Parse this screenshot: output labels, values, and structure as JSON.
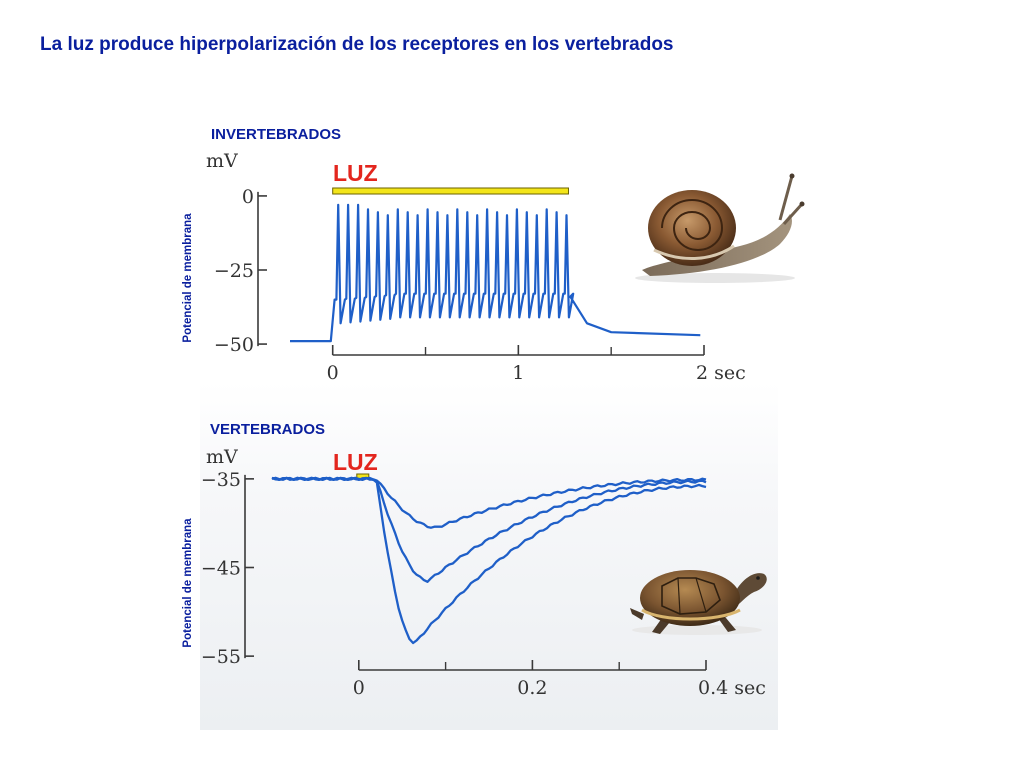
{
  "title": "La luz produce hiperpolarización de los receptores en los vertebrados",
  "colors": {
    "title": "#0a1f9e",
    "trace": "#1f5fc8",
    "light": "#e3261e",
    "bar_fill": "#f3e51a",
    "bar_edge": "#6b6200"
  },
  "chart_data": [
    {
      "type": "line",
      "section_label": "INVERTEBRADOS",
      "ylabel": "Potencial de membrana",
      "yunit": "mV",
      "xunit": "sec",
      "stimulus_label": "LUZ",
      "stimulus_interval": [
        0,
        1.27
      ],
      "xlim": [
        -0.23,
        2.0
      ],
      "ylim": [
        -52,
        2
      ],
      "yticks": [
        0,
        -25,
        -50
      ],
      "ytick_labels": [
        "0",
        "−25",
        "−50"
      ],
      "xticks_labeled": [
        0,
        1,
        2
      ],
      "xtick_labels": [
        "0",
        "1",
        "2 sec"
      ],
      "xticks_minor": [
        0.5,
        1.5
      ],
      "trace": {
        "baseline": -49,
        "plateau": -33,
        "spike_peak": -3,
        "spike_count": 24,
        "spike_start": 0.02,
        "spike_end": 1.25,
        "recovery_end": 1.5,
        "final": -47
      },
      "animal": "snail-icon"
    },
    {
      "type": "line",
      "section_label": "VERTEBRADOS",
      "ylabel": "Potencial de membrana",
      "yunit": "mV",
      "xunit": "sec",
      "stimulus_label": "LUZ",
      "stimulus_interval": [
        0,
        0.01
      ],
      "xlim": [
        -0.1,
        0.4
      ],
      "ylim": [
        -56,
        -34
      ],
      "yticks": [
        -35,
        -45,
        -55
      ],
      "ytick_labels": [
        "−35",
        "−45",
        "−55"
      ],
      "xticks_labeled": [
        0,
        0.2,
        0.4
      ],
      "xtick_labels": [
        "0",
        "0.2",
        "0.4 sec"
      ],
      "xticks_minor": [
        0.1,
        0.3
      ],
      "series": [
        {
          "baseline": -35,
          "onset": 0.02,
          "min_x": 0.09,
          "min_y": -40.5,
          "end_y": -35.1
        },
        {
          "baseline": -35,
          "onset": 0.02,
          "min_x": 0.08,
          "min_y": -46.5,
          "end_y": -35.3
        },
        {
          "baseline": -35,
          "onset": 0.02,
          "min_x": 0.065,
          "min_y": -53.5,
          "end_y": -35.8
        }
      ],
      "animal": "turtle-icon"
    }
  ]
}
